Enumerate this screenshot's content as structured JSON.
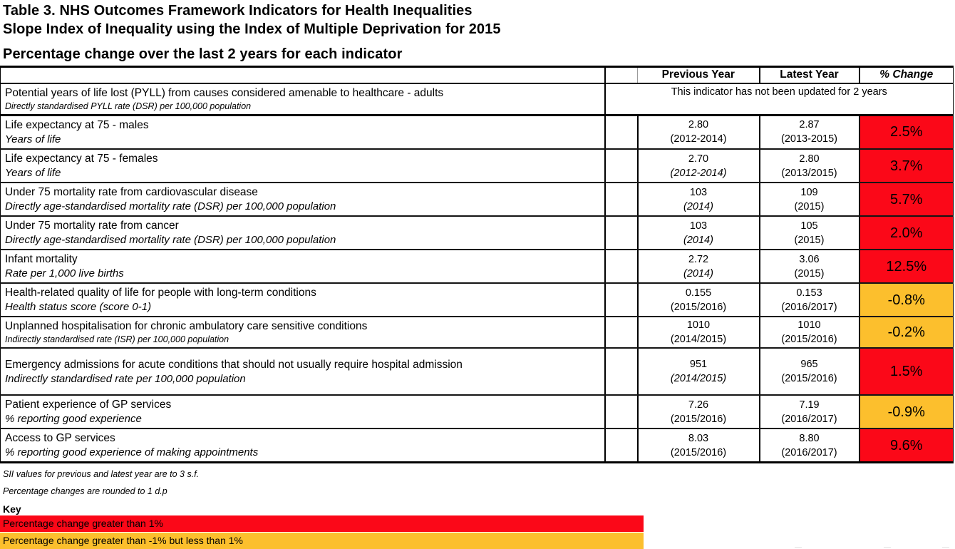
{
  "title": {
    "line1": "Table 3.  NHS Outcomes Framework Indicators for Health Inequalities",
    "line2": "Slope Index of Inequality using the Index of Multiple Deprivation for 2015",
    "line3": "Percentage change over the last 2 years for each indicator"
  },
  "table": {
    "columns": [
      "Previous Year",
      "Latest Year",
      "% Change"
    ],
    "rows": [
      {
        "indicator": "Potential years of life lost (PYLL) from causes considered amenable to healthcare - adults",
        "subtitle": "Directly standardised PYLL rate (DSR) per 100,000 population",
        "subtitle_size": "small",
        "note": "This indicator has not been updated for 2 years"
      },
      {
        "indicator": "Life expectancy at 75 - males",
        "subtitle": "Years of life",
        "subtitle_size": "normal",
        "prev_value": "2.80",
        "prev_period": "(2012-2014)",
        "prev_period_style": "normal",
        "latest_value": "2.87",
        "latest_period": "(2013-2015)",
        "change": "2.5%",
        "band": "red"
      },
      {
        "indicator": "Life expectancy at 75 - females",
        "subtitle": "Years of life",
        "subtitle_size": "normal",
        "prev_value": "2.70",
        "prev_period": "(2012-2014)",
        "prev_period_style": "italic",
        "latest_value": "2.80",
        "latest_period": "(2013/2015)",
        "change": "3.7%",
        "band": "red"
      },
      {
        "indicator": "Under 75 mortality rate from cardiovascular disease",
        "subtitle": "Directly age-standardised mortality rate (DSR) per 100,000 population",
        "subtitle_size": "normal",
        "prev_value": "103",
        "prev_period": "(2014)",
        "prev_period_style": "italic",
        "latest_value": "109",
        "latest_period": "(2015)",
        "change": "5.7%",
        "band": "red"
      },
      {
        "indicator": "Under 75 mortality rate from cancer",
        "subtitle": "Directly age-standardised mortality rate (DSR) per 100,000 population",
        "subtitle_size": "normal",
        "prev_value": "103",
        "prev_period": "(2014)",
        "prev_period_style": "italic",
        "latest_value": "105",
        "latest_period": "(2015)",
        "change": "2.0%",
        "band": "red"
      },
      {
        "indicator": "Infant mortality",
        "subtitle": "Rate per 1,000 live births",
        "subtitle_size": "normal",
        "prev_value": "2.72",
        "prev_period": "(2014)",
        "prev_period_style": "italic",
        "latest_value": "3.06",
        "latest_period": "(2015)",
        "change": "12.5%",
        "band": "red"
      },
      {
        "indicator": "Health-related quality of life for people with long-term conditions",
        "subtitle": "Health status score (score 0-1)",
        "subtitle_size": "normal",
        "prev_value": "0.155",
        "prev_period": "(2015/2016)",
        "prev_period_style": "normal",
        "latest_value": "0.153",
        "latest_period": "(2016/2017)",
        "change": "-0.8%",
        "band": "amber"
      },
      {
        "indicator": "Unplanned hospitalisation for chronic ambulatory care sensitive conditions",
        "subtitle": "Indirectly standardised rate (ISR) per 100,000 population",
        "subtitle_size": "small",
        "prev_value": "1010",
        "prev_period": "(2014/2015)",
        "prev_period_style": "normal",
        "latest_value": "1010",
        "latest_period": "(2015/2016)",
        "change": "-0.2%",
        "band": "amber"
      },
      {
        "indicator": "Emergency admissions for acute conditions that should not usually require hospital admission",
        "subtitle": "Indirectly standardised rate per 100,000 population",
        "subtitle_size": "normal",
        "prev_value": "951",
        "prev_period": "(2014/2015)",
        "prev_period_style": "italic",
        "latest_value": "965",
        "latest_period": "(2015/2016)",
        "change": "1.5%",
        "band": "red"
      },
      {
        "indicator": "Patient experience of GP services",
        "subtitle": "% reporting good experience",
        "subtitle_size": "normal",
        "prev_value": "7.26",
        "prev_period": "(2015/2016)",
        "prev_period_style": "normal",
        "latest_value": "7.19",
        "latest_period": "(2016/2017)",
        "change": "-0.9%",
        "band": "amber"
      },
      {
        "indicator": "Access to GP services",
        "subtitle": "% reporting good experience of making appointments",
        "subtitle_size": "normal",
        "prev_value": "8.03",
        "prev_period": "(2015/2016)",
        "prev_period_style": "normal",
        "latest_value": "8.80",
        "latest_period": "(2016/2017)",
        "change": "9.6%",
        "band": "red"
      }
    ]
  },
  "footnotes": {
    "line1": "SII values for previous and latest year are to 3 s.f.",
    "line2": "Percentage changes are rounded to 1 d.p"
  },
  "key": {
    "label": "Key",
    "items": [
      {
        "label": "Percentage change greater than 1%",
        "band": "red"
      },
      {
        "label": "Percentage change greater than -1% but less than 1%",
        "band": "amber"
      }
    ]
  },
  "colors": {
    "red": "#fb0818",
    "amber": "#fcbf2d"
  }
}
